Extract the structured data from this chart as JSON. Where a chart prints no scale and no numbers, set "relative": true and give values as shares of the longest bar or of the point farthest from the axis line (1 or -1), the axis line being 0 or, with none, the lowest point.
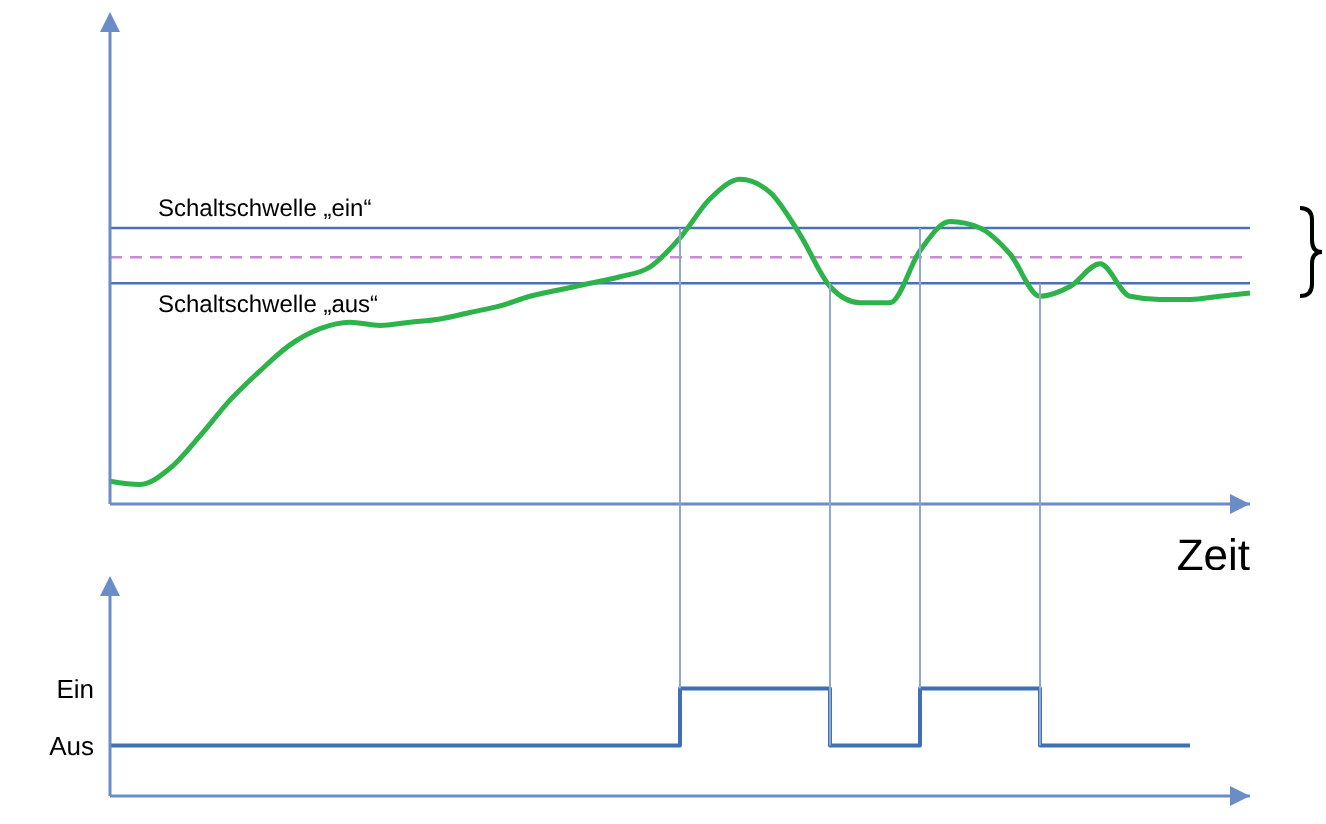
{
  "chart_data": [
    {
      "type": "line",
      "relative": true,
      "xlabel": "Zeit",
      "categories": [
        null,
        null,
        null,
        null,
        null,
        null,
        null,
        null,
        null,
        null,
        null,
        null,
        null,
        null,
        null,
        null,
        null,
        null,
        null,
        null,
        null,
        null,
        null,
        null,
        null,
        null,
        null,
        null,
        null,
        null,
        null,
        null,
        null,
        null,
        null,
        null,
        null,
        null,
        null
      ],
      "series": [
        {
          "color": "#2db34a",
          "values": [
            0.07,
            0.06,
            0.11,
            0.21,
            0.32,
            0.41,
            0.49,
            0.54,
            0.56,
            0.55,
            0.56,
            0.57,
            0.59,
            0.61,
            0.64,
            0.66,
            0.68,
            0.7,
            0.73,
            0.82,
            0.94,
            1,
            0.96,
            0.83,
            0.67,
            0.62,
            0.62,
            0.78,
            0.87,
            0.85,
            0.77,
            0.64,
            0.67,
            0.74,
            0.64,
            0.63,
            0.63,
            0.64,
            0.65
          ]
        }
      ],
      "ref_lines": [
        {
          "axis": "y",
          "value": 0.85,
          "label": "Schaltschwelle „ein“",
          "color": "#4a72b0"
        },
        {
          "axis": "y",
          "value": 0.68,
          "label": "Schaltschwelle „aus“",
          "color": "#4a72b0"
        },
        {
          "axis": "y",
          "value": 0.76,
          "color": "#c88ad0",
          "line_style": "dashed"
        }
      ],
      "grid": "x"
    },
    {
      "type": "step",
      "categories": [
        null,
        null,
        null,
        null,
        null,
        null,
        null,
        null,
        null,
        null,
        null,
        null,
        null,
        null,
        null,
        null,
        null,
        null,
        null,
        null,
        null,
        null,
        null,
        null,
        null,
        null,
        null,
        null,
        null,
        null,
        null,
        null,
        null,
        null,
        null,
        null,
        null,
        null,
        null
      ],
      "series": [
        {
          "color": "#3f6fb5",
          "values": [
            0.47,
            0.47,
            0.47,
            0.47,
            0.47,
            0.47,
            0.47,
            0.47,
            0.47,
            0.47,
            0.47,
            0.47,
            0.47,
            0.47,
            0.47,
            0.47,
            0.47,
            0.47,
            0.47,
            1,
            1,
            1,
            1,
            1,
            0.47,
            0.47,
            0.47,
            1,
            1,
            1,
            1,
            0.47,
            0.47,
            0.47,
            0.47,
            0.47,
            0.47,
            null,
            null
          ]
        }
      ],
      "relative": true,
      "annotations": [
        "Ein",
        "Aus"
      ]
    }
  ]
}
